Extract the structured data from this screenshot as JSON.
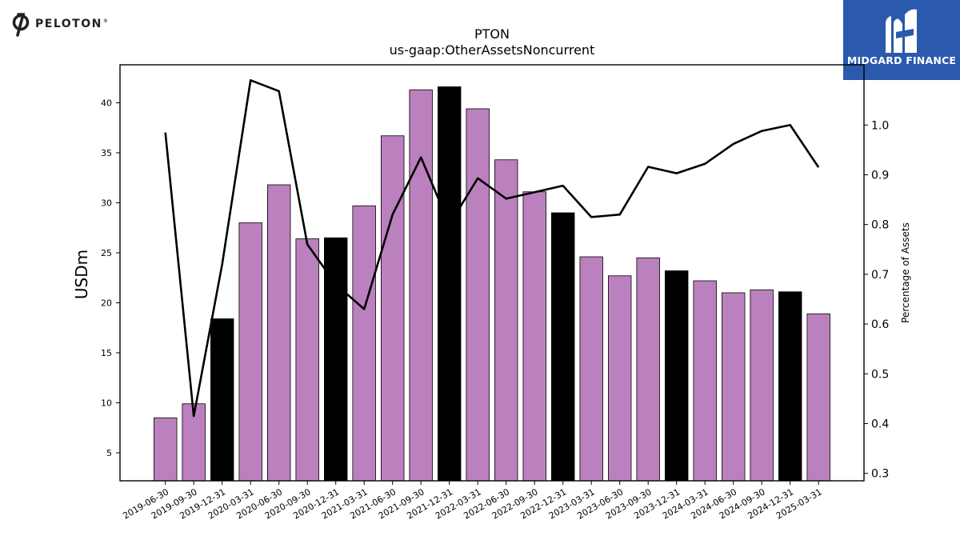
{
  "logos": {
    "left_brand": "PELOTON",
    "left_reg": "®",
    "right_brand": "MIDGARD FINANCE",
    "right_bg": "#2b59ad"
  },
  "chart_data": {
    "type": "bar+line",
    "title": "PTON",
    "subtitle": "us-gaap:OtherAssetsNoncurrent",
    "ylabel": "USDm",
    "y2label": "Percentage of Assets",
    "ylim": [
      2.2,
      43.8
    ],
    "y2lim": [
      0.285,
      1.121
    ],
    "yticks": [
      5,
      10,
      15,
      20,
      25,
      30,
      35,
      40
    ],
    "y2ticks": [
      0.3,
      0.4,
      0.5,
      0.6,
      0.7,
      0.8,
      0.9,
      1.0
    ],
    "grid": false,
    "legend": "none",
    "categories": [
      "2019-06-30",
      "2019-09-30",
      "2019-12-31",
      "2020-03-31",
      "2020-06-30",
      "2020-09-30",
      "2020-12-31",
      "2021-03-31",
      "2021-06-30",
      "2021-09-30",
      "2021-12-31",
      "2022-03-31",
      "2022-06-30",
      "2022-09-30",
      "2022-12-31",
      "2023-03-31",
      "2023-06-30",
      "2023-09-30",
      "2023-12-31",
      "2024-03-31",
      "2024-06-30",
      "2024-09-30",
      "2024-12-31",
      "2025-03-31"
    ],
    "bar_values": [
      8.5,
      9.9,
      18.4,
      28.0,
      31.8,
      26.4,
      26.5,
      29.7,
      36.7,
      41.3,
      41.6,
      39.4,
      34.3,
      31.1,
      29.0,
      24.6,
      22.7,
      24.5,
      23.2,
      22.2,
      21.0,
      21.3,
      21.1,
      18.9
    ],
    "bar_highlight": [
      false,
      false,
      true,
      false,
      false,
      false,
      true,
      false,
      false,
      false,
      true,
      false,
      false,
      false,
      true,
      false,
      false,
      false,
      true,
      false,
      false,
      false,
      true,
      false
    ],
    "line_values": [
      0.985,
      0.415,
      0.72,
      1.09,
      1.068,
      0.76,
      0.68,
      0.63,
      0.82,
      0.935,
      0.8,
      0.893,
      0.852,
      0.865,
      0.878,
      0.815,
      0.82,
      0.916,
      0.903,
      0.922,
      0.962,
      0.988,
      1.0,
      0.915
    ],
    "colors": {
      "bar": "#bb80be",
      "bar_highlight": "#000000",
      "bar_edge": "#000000",
      "line": "#000000"
    }
  }
}
